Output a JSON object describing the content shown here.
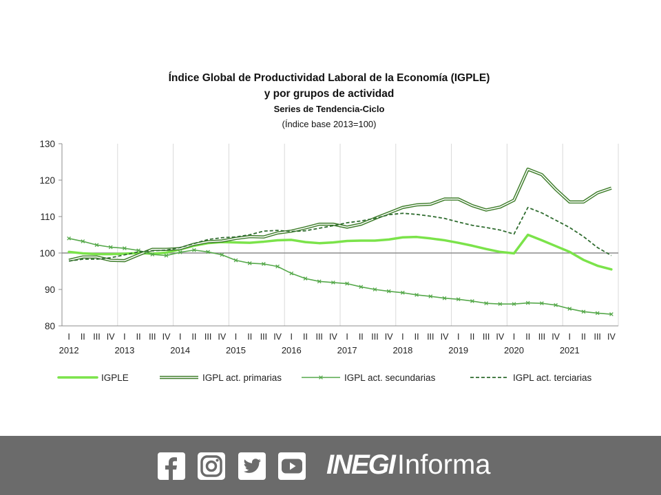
{
  "chart_data": {
    "type": "line",
    "title": "Índice Global de Productividad Laboral de la Economía (IGPLE)",
    "title_line2": "y por grupos de actividad",
    "subtitle": "Series de Tendencia-Ciclo",
    "note": "(Índice base 2013=100)",
    "ylim": [
      80,
      130
    ],
    "yticks": [
      80,
      90,
      100,
      110,
      120,
      130
    ],
    "reference_line": 100,
    "quarter_labels": [
      "I",
      "II",
      "III",
      "IV",
      "I",
      "II",
      "III",
      "IV",
      "I",
      "II",
      "III",
      "IV",
      "I",
      "II",
      "III",
      "IV",
      "I",
      "II",
      "III",
      "IV",
      "I",
      "II",
      "III",
      "IV",
      "I",
      "II",
      "III",
      "IV",
      "I",
      "II",
      "III",
      "IV",
      "I",
      "II",
      "III",
      "IV",
      "I",
      "II",
      "III",
      "IV"
    ],
    "years": [
      "2012",
      "2013",
      "2014",
      "2015",
      "2016",
      "2017",
      "2018",
      "2019",
      "2020",
      "2021"
    ],
    "legend_position": "bottom",
    "series": [
      {
        "name": "IGPLE",
        "color": "#7be34a",
        "style": "thick",
        "values": [
          100.3,
          99.9,
          99.7,
          99.7,
          99.8,
          100.0,
          99.8,
          100.1,
          101.0,
          102.0,
          102.7,
          103.0,
          102.9,
          102.8,
          103.1,
          103.5,
          103.6,
          103.0,
          102.7,
          102.9,
          103.3,
          103.4,
          103.4,
          103.7,
          104.3,
          104.4,
          104.0,
          103.5,
          102.8,
          102.0,
          101.1,
          100.3,
          99.9,
          105.0,
          103.5,
          101.9,
          100.3,
          98.1,
          96.5,
          95.5
        ]
      },
      {
        "name": "IGPL act. primarias",
        "color": "#3e7d2a",
        "style": "double",
        "values": [
          98.0,
          98.9,
          98.9,
          98.0,
          97.9,
          99.5,
          101.0,
          101.0,
          101.2,
          102.4,
          103.1,
          103.3,
          104.0,
          104.5,
          104.4,
          105.5,
          106.0,
          106.9,
          107.9,
          107.9,
          107.1,
          107.9,
          109.5,
          111.0,
          112.5,
          113.2,
          113.4,
          114.8,
          114.8,
          113.0,
          111.8,
          112.6,
          114.5,
          123.0,
          121.5,
          117.5,
          114.0,
          114.0,
          116.5,
          117.8
        ]
      },
      {
        "name": "IGPL act. secundarias",
        "color": "#55a84a",
        "style": "marker",
        "values": [
          104.0,
          103.2,
          102.2,
          101.6,
          101.3,
          100.7,
          99.6,
          99.3,
          100.2,
          100.8,
          100.3,
          99.5,
          98.0,
          97.2,
          97.0,
          96.3,
          94.4,
          93.0,
          92.2,
          91.9,
          91.6,
          90.7,
          90.0,
          89.5,
          89.1,
          88.5,
          88.1,
          87.6,
          87.3,
          86.8,
          86.2,
          86.0,
          86.0,
          86.3,
          86.2,
          85.7,
          84.7,
          83.9,
          83.5,
          83.2
        ]
      },
      {
        "name": "IGPL act. terciarias",
        "color": "#2e6b2e",
        "style": "dashed",
        "values": [
          97.8,
          98.3,
          98.3,
          98.7,
          99.5,
          100.3,
          100.6,
          100.8,
          101.5,
          102.6,
          103.7,
          104.2,
          104.4,
          105.0,
          106.0,
          106.2,
          105.9,
          106.1,
          106.8,
          107.5,
          108.3,
          108.8,
          109.5,
          110.5,
          110.9,
          110.6,
          110.1,
          109.5,
          108.5,
          107.6,
          107.0,
          106.3,
          105.2,
          112.5,
          111.0,
          109.0,
          107.0,
          104.5,
          101.5,
          99.3
        ]
      }
    ]
  },
  "footer": {
    "social_icons": [
      "facebook-icon",
      "instagram-icon",
      "twitter-icon",
      "youtube-icon"
    ],
    "brand_strong": "INEGI",
    "brand_light": "Informa",
    "bg_color": "#6b6b6b"
  }
}
